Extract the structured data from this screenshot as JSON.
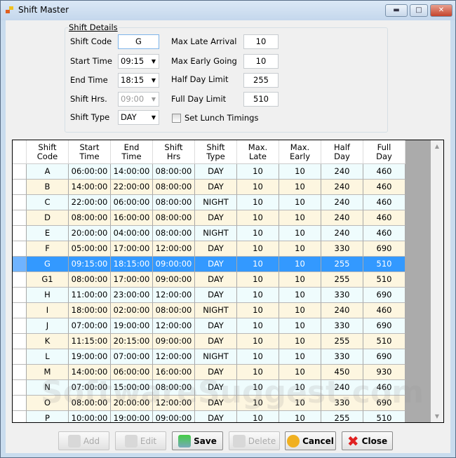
{
  "window": {
    "title": "Shift Master",
    "controls": [
      "minimize",
      "maximize",
      "close"
    ]
  },
  "form": {
    "group_title": "Shift Details",
    "shift_code": {
      "label": "Shift Code",
      "value": "G"
    },
    "start_time": {
      "label": "Start Time",
      "value": "09:15"
    },
    "end_time": {
      "label": "End Time",
      "value": "18:15"
    },
    "shift_hrs": {
      "label": "Shift Hrs.",
      "value": "09:00"
    },
    "shift_type": {
      "label": "Shift Type",
      "value": "DAY"
    },
    "max_late": {
      "label": "Max Late Arrival",
      "value": "10"
    },
    "max_early": {
      "label": "Max Early Going",
      "value": "10"
    },
    "half_day": {
      "label": "Half Day Limit",
      "value": "255"
    },
    "full_day": {
      "label": "Full Day Limit",
      "value": "510"
    },
    "lunch": {
      "label": "Set Lunch Timings",
      "checked": false
    }
  },
  "table": {
    "columns": [
      "Shift\nCode",
      "Start\nTime",
      "End\nTime",
      "Shift\nHrs",
      "Shift\nType",
      "Max.\nLate",
      "Max.\nEarly",
      "Half\nDay",
      "Full\nDay"
    ],
    "selected_index": 6,
    "row_colors": [
      "#effcfd",
      "#fdf6e0"
    ],
    "selected_color": "#3399ff",
    "rows": [
      [
        "A",
        "06:00:00",
        "14:00:00",
        "08:00:00",
        "DAY",
        "10",
        "10",
        "240",
        "460"
      ],
      [
        "B",
        "14:00:00",
        "22:00:00",
        "08:00:00",
        "DAY",
        "10",
        "10",
        "240",
        "460"
      ],
      [
        "C",
        "22:00:00",
        "06:00:00",
        "08:00:00",
        "NIGHT",
        "10",
        "10",
        "240",
        "460"
      ],
      [
        "D",
        "08:00:00",
        "16:00:00",
        "08:00:00",
        "DAY",
        "10",
        "10",
        "240",
        "460"
      ],
      [
        "E",
        "20:00:00",
        "04:00:00",
        "08:00:00",
        "NIGHT",
        "10",
        "10",
        "240",
        "460"
      ],
      [
        "F",
        "05:00:00",
        "17:00:00",
        "12:00:00",
        "DAY",
        "10",
        "10",
        "330",
        "690"
      ],
      [
        "G",
        "09:15:00",
        "18:15:00",
        "09:00:00",
        "DAY",
        "10",
        "10",
        "255",
        "510"
      ],
      [
        "G1",
        "08:00:00",
        "17:00:00",
        "09:00:00",
        "DAY",
        "10",
        "10",
        "255",
        "510"
      ],
      [
        "H",
        "11:00:00",
        "23:00:00",
        "12:00:00",
        "DAY",
        "10",
        "10",
        "330",
        "690"
      ],
      [
        "I",
        "18:00:00",
        "02:00:00",
        "08:00:00",
        "NIGHT",
        "10",
        "10",
        "240",
        "460"
      ],
      [
        "J",
        "07:00:00",
        "19:00:00",
        "12:00:00",
        "DAY",
        "10",
        "10",
        "330",
        "690"
      ],
      [
        "K",
        "11:15:00",
        "20:15:00",
        "09:00:00",
        "DAY",
        "10",
        "10",
        "255",
        "510"
      ],
      [
        "L",
        "19:00:00",
        "07:00:00",
        "12:00:00",
        "NIGHT",
        "10",
        "10",
        "330",
        "690"
      ],
      [
        "M",
        "14:00:00",
        "06:00:00",
        "16:00:00",
        "DAY",
        "10",
        "10",
        "450",
        "930"
      ],
      [
        "N",
        "07:00:00",
        "15:00:00",
        "08:00:00",
        "DAY",
        "10",
        "10",
        "240",
        "460"
      ],
      [
        "O",
        "08:00:00",
        "20:00:00",
        "12:00:00",
        "DAY",
        "10",
        "10",
        "330",
        "690"
      ],
      [
        "P",
        "10:00:00",
        "19:00:00",
        "09:00:00",
        "DAY",
        "10",
        "10",
        "255",
        "510"
      ]
    ]
  },
  "buttons": {
    "add": "Add",
    "edit": "Edit",
    "save": "Save",
    "delete": "Delete",
    "cancel": "Cancel",
    "close": "Close"
  },
  "watermark": "SoftwareSuggest.com"
}
